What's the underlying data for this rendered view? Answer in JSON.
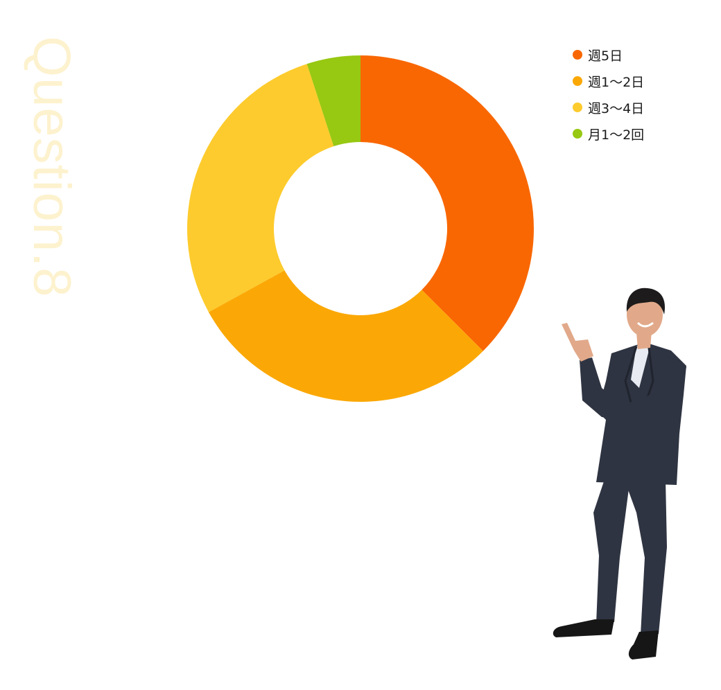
{
  "watermark": {
    "text": "Question.8",
    "color": "#fdf2cc"
  },
  "chart_data": {
    "type": "pie",
    "title": "",
    "categories": [
      "週5日",
      "週1〜2日",
      "週3〜4日",
      "月1〜2回"
    ],
    "values": [
      37.5,
      29.5,
      28,
      5
    ],
    "colors": [
      "#f96702",
      "#fba806",
      "#fdcb2d",
      "#97c812"
    ],
    "donut": true,
    "inner_radius_ratio": 0.5,
    "start_angle_deg": 0,
    "legend_position": "top-right"
  },
  "legend": {
    "items": [
      {
        "label": "週5日",
        "color": "#f96702"
      },
      {
        "label": "週1〜2日",
        "color": "#fba806"
      },
      {
        "label": "週3〜4日",
        "color": "#fdcb2d"
      },
      {
        "label": "月1〜2回",
        "color": "#97c812"
      }
    ]
  },
  "person_image": {
    "icon": "businessman-pointing-illustration",
    "suit_color": "#2f3442",
    "shirt_color": "#e8ecf2",
    "skin_color": "#e1a98a",
    "hair_color": "#1d1b1b",
    "shoe_color": "#161616"
  }
}
